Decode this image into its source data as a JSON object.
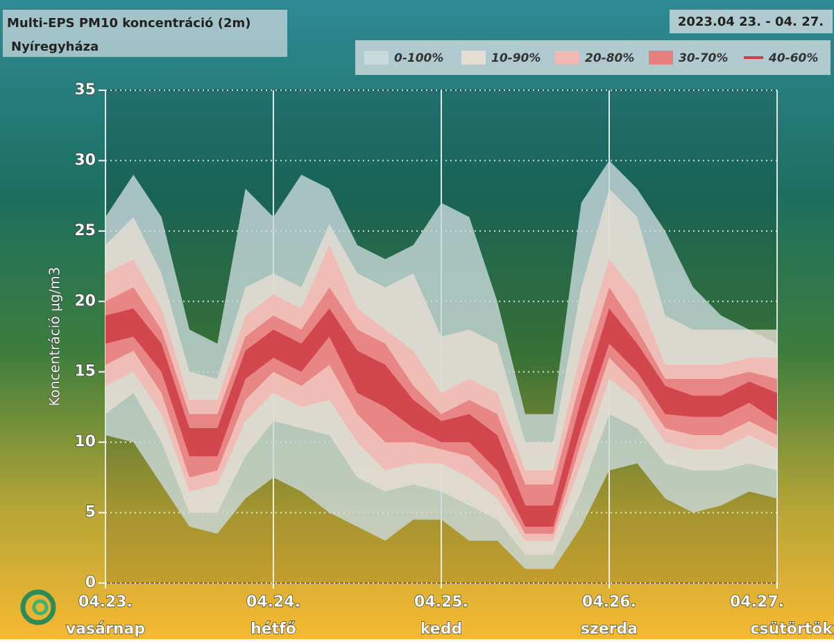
{
  "chart_data": {
    "type": "fan",
    "title": "Multi-EPS PM10 koncentráció (2m)",
    "subtitle": "Nyíregyháza",
    "date_range": "2023.04 23. - 04. 27.",
    "ylabel": "Koncentráció µg/m3",
    "x": [
      0,
      4,
      8,
      12,
      16,
      20,
      24,
      28,
      32,
      36,
      40,
      44,
      48,
      52,
      56,
      60,
      64,
      68,
      72,
      76,
      80,
      84,
      88,
      92,
      96
    ],
    "xlim": [
      0,
      96
    ],
    "xticks": [
      {
        "value": 0,
        "label": "04.23."
      },
      {
        "value": 24,
        "label": "04.24."
      },
      {
        "value": 48,
        "label": "04.25."
      },
      {
        "value": 72,
        "label": "04.26."
      },
      {
        "value": 96,
        "label": "04.27."
      }
    ],
    "weekdays": [
      "vasárnap",
      "hétfő",
      "kedd",
      "szerda",
      "csütörtök"
    ],
    "ylim": [
      0,
      35
    ],
    "yticks": [
      0,
      5,
      10,
      15,
      20,
      25,
      30,
      35
    ],
    "grid": true,
    "legend": "top-right",
    "series": [
      {
        "name": "0-100%",
        "color": "#c9dadc",
        "low": [
          10.5,
          10,
          7,
          4,
          3.5,
          6,
          7.5,
          6.5,
          5,
          4,
          3,
          4.5,
          4.5,
          3,
          3,
          1,
          1,
          4,
          8,
          8.5,
          6,
          5,
          5.5,
          6.5,
          6
        ],
        "high": [
          26,
          29,
          26,
          18,
          17,
          28,
          26,
          29,
          28,
          24,
          23,
          24,
          27,
          26,
          20,
          12,
          12,
          27,
          30,
          28,
          25,
          21,
          19,
          18,
          17
        ]
      },
      {
        "name": "10-90%",
        "color": "#e6ddd3",
        "low": [
          12,
          13.5,
          10,
          5,
          5,
          9,
          11.5,
          11,
          10.5,
          7.5,
          6.5,
          7,
          6.5,
          5.5,
          4.5,
          2,
          2,
          6.5,
          12,
          11,
          8.5,
          8,
          8,
          8.5,
          8
        ],
        "high": [
          24,
          26,
          22,
          15,
          14.5,
          21,
          22,
          21,
          25.5,
          22,
          21,
          22,
          17.5,
          18,
          17,
          10,
          10,
          21,
          28,
          26,
          19,
          18,
          18,
          18,
          18
        ]
      },
      {
        "name": "20-80%",
        "color": "#f1b9b3",
        "low": [
          14,
          15,
          12,
          6.5,
          7,
          11.5,
          13.5,
          12.5,
          13,
          10,
          8,
          8.5,
          8.5,
          7.5,
          6,
          3,
          3,
          8.5,
          14.5,
          13,
          10,
          9.5,
          9.5,
          10.5,
          9.5
        ],
        "high": [
          22,
          23,
          19.5,
          13,
          13,
          19,
          20.5,
          19.5,
          24,
          19.5,
          18,
          16.5,
          13.5,
          14.5,
          13.5,
          8,
          8,
          16.5,
          23,
          20.5,
          15.5,
          15.5,
          15.5,
          16,
          16
        ]
      },
      {
        "name": "30-70%",
        "color": "#e5807f",
        "low": [
          15.5,
          16.5,
          13.5,
          7.5,
          8,
          13,
          15,
          14,
          15.5,
          12,
          10,
          10,
          9.5,
          9,
          7,
          3.5,
          3.5,
          10,
          16,
          14,
          11,
          10.5,
          10.5,
          11.5,
          10.5
        ],
        "high": [
          20,
          21,
          18,
          12,
          12,
          17.5,
          19,
          18,
          21,
          18,
          17,
          14,
          12,
          13,
          12,
          7,
          7,
          14.5,
          21,
          18,
          14.5,
          14.5,
          14.5,
          15,
          14.5
        ]
      },
      {
        "name": "40-60%",
        "color": "#cf3f48",
        "low": [
          17,
          17.5,
          15,
          9,
          9,
          14.5,
          16,
          15,
          17.5,
          13.5,
          12.5,
          11,
          10,
          10,
          8,
          4,
          4,
          11,
          17,
          15,
          12,
          11.8,
          11.8,
          12.8,
          11.5
        ],
        "high": [
          19,
          19.5,
          17,
          11,
          11,
          16.5,
          18,
          17,
          19.5,
          16.5,
          15.5,
          13,
          11.5,
          12,
          10.5,
          5.5,
          5.5,
          13,
          19.5,
          17,
          14,
          13.3,
          13.3,
          14.3,
          13.5
        ]
      }
    ]
  }
}
